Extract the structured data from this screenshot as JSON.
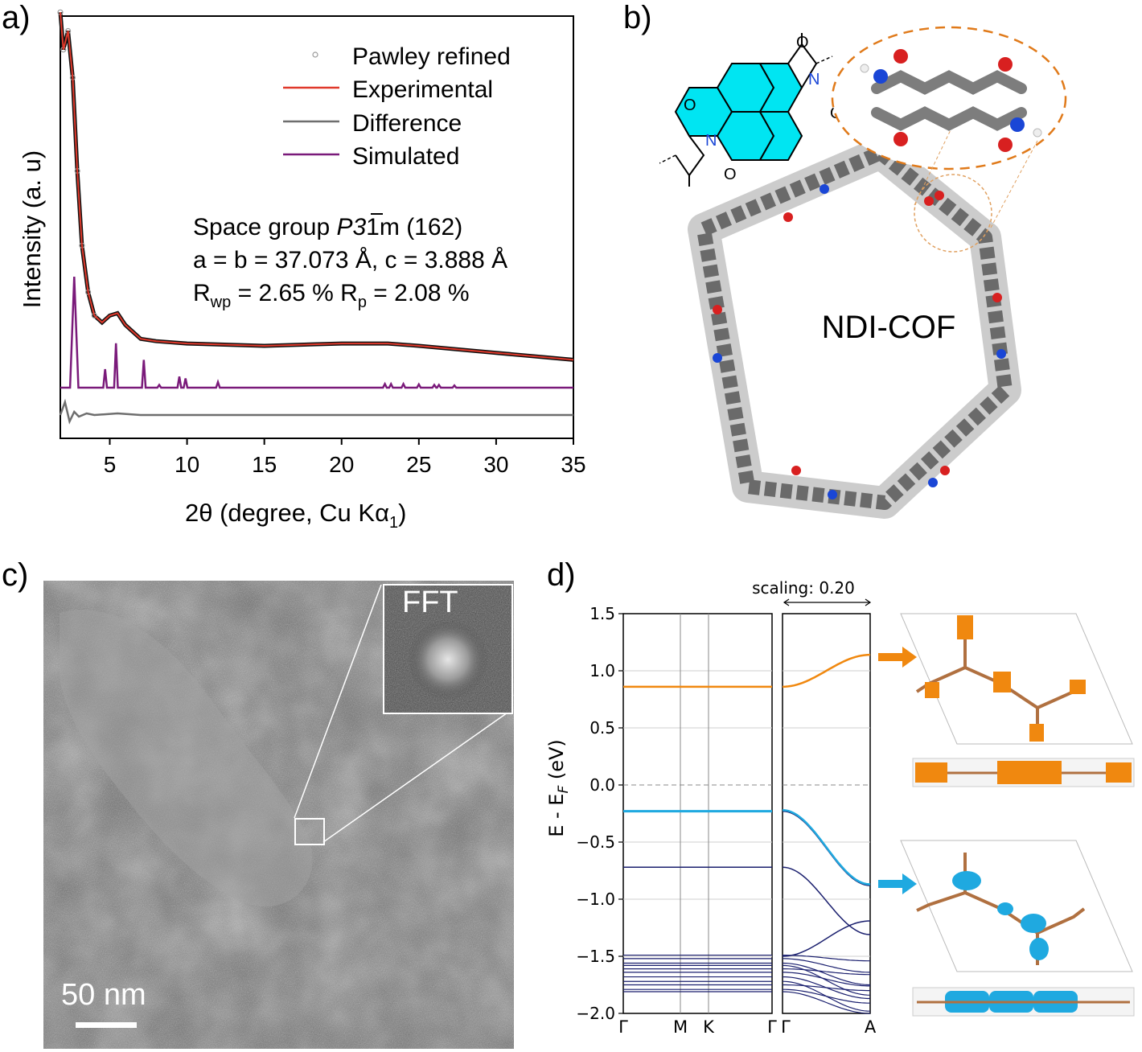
{
  "panels": {
    "a": "a)",
    "b": "b)",
    "c": "c)",
    "d": "d)"
  },
  "colors": {
    "experimental": "#e0392b",
    "difference": "#6e6e6e",
    "simulated": "#7a1a7a",
    "pawley": "#9a9a9a",
    "cbm": "#f0880f",
    "vbm": "#1fa9e0",
    "bands": "#1a1f6e",
    "ndi_core": "#00e5f2"
  },
  "panel_a": {
    "legend": [
      "Pawley refined",
      "Experimental",
      "Difference",
      "Simulated"
    ],
    "space_group_prefix": "Space group ",
    "space_group_symbol": "P3",
    "space_group_suffix": "1m",
    "space_group_number": " (162)",
    "lattice": "a = b = 37.073 Å, c = 3.888 Å",
    "rwp_label": "R",
    "rwp_sub": "wp",
    "rwp_value": " = 2.65 % R",
    "rp_sub": "p",
    "rp_value": " = 2.08 %",
    "ylabel": "Intensity (a. u)",
    "xlabel_main": "2θ (degree, Cu Kα",
    "xlabel_sub": "1",
    "xlabel_end": ")"
  },
  "panel_b": {
    "cof_label": "NDI-COF",
    "structure_atoms": [
      "O",
      "O",
      "O",
      "O",
      "N",
      "N"
    ]
  },
  "panel_c": {
    "inset_label": "FFT",
    "scale_bar": "50 nm"
  },
  "panel_d": {
    "scaling": "scaling: 0.20",
    "ylabel_main": "E - E",
    "ylabel_sub": "F",
    "ylabel_end": " (eV)",
    "kpoints_left": [
      "Γ",
      "M",
      "K",
      "Γ"
    ],
    "kpoints_right": [
      "Γ",
      "A"
    ]
  },
  "chart_data": [
    {
      "type": "line",
      "title": "",
      "xlabel": "2θ (degree, Cu Kα1)",
      "ylabel": "Intensity (a. u)",
      "xlim": [
        1.8,
        35
      ],
      "xticks": [
        5,
        10,
        15,
        20,
        25,
        30,
        35
      ],
      "legend_position": "top-right",
      "series": [
        {
          "name": "Experimental",
          "x": [
            1.8,
            2.0,
            2.3,
            2.6,
            2.9,
            3.2,
            3.6,
            4.0,
            4.5,
            5.0,
            5.5,
            6.0,
            6.5,
            7.0,
            8.0,
            10.0,
            15.0,
            20.0,
            23.0,
            25.0,
            30.0,
            35.0
          ],
          "y": [
            0.97,
            0.89,
            0.93,
            0.83,
            0.63,
            0.47,
            0.37,
            0.32,
            0.305,
            0.32,
            0.325,
            0.3,
            0.285,
            0.27,
            0.265,
            0.26,
            0.255,
            0.26,
            0.26,
            0.255,
            0.24,
            0.225
          ]
        },
        {
          "name": "Simulated",
          "peaks_x": [
            2.7,
            4.7,
            5.4,
            7.2,
            8.2,
            9.5,
            9.9,
            12.0,
            22.8,
            23.2,
            24.0,
            25.0,
            26.0,
            26.3,
            27.3
          ],
          "peaks_y": [
            0.6,
            0.1,
            0.24,
            0.15,
            0.015,
            0.06,
            0.05,
            0.03,
            0.02,
            0.02,
            0.02,
            0.018,
            0.015,
            0.015,
            0.012
          ],
          "baseline": 0.0
        },
        {
          "name": "Difference",
          "x": [
            1.8,
            2.1,
            2.4,
            2.7,
            3.0,
            3.5,
            4.0,
            5.5,
            7.0,
            10.0,
            35.0
          ],
          "y": [
            0.0,
            0.04,
            -0.02,
            0.01,
            -0.005,
            0.005,
            0.0,
            0.005,
            0.0,
            0.0,
            0.0
          ]
        }
      ]
    },
    {
      "type": "line",
      "title": "",
      "xlabel": "",
      "ylabel": "E - EF (eV)",
      "ylim": [
        -2.0,
        1.5
      ],
      "yticks": [
        1.5,
        1.0,
        0.5,
        0.0,
        -0.5,
        -1.0,
        -1.5,
        -2.0
      ],
      "x_left_kpoints": [
        "Γ",
        "M",
        "K",
        "Γ"
      ],
      "x_right_kpoints": [
        "Γ",
        "A"
      ],
      "fermi_level": 0.0,
      "series": [
        {
          "name": "",
          "segment": "in-plane",
          "energy": 0.86
        },
        {
          "name": "",
          "segment": "in-plane",
          "energy": -0.23
        },
        {
          "name": "",
          "segment": "in-plane",
          "energy": -0.72
        },
        {
          "name": "",
          "segment": "in-plane",
          "energies": [
            -1.49,
            -1.52,
            -1.56,
            -1.58,
            -1.61,
            -1.64,
            -1.68,
            -1.72,
            -1.75,
            -1.79,
            -1.81
          ]
        },
        {
          "name": "",
          "segment": "out-of-plane",
          "y_start": 0.86,
          "y_end": 1.14
        },
        {
          "name": "",
          "segment": "out-of-plane",
          "y_start": -0.23,
          "y_end": -0.88
        },
        {
          "name": "",
          "segment": "out-of-plane",
          "y_start": -0.72,
          "y_end": -1.31
        },
        {
          "name": "",
          "segment": "out-of-plane",
          "y_start": -1.5,
          "y_end": -1.19
        }
      ]
    }
  ]
}
